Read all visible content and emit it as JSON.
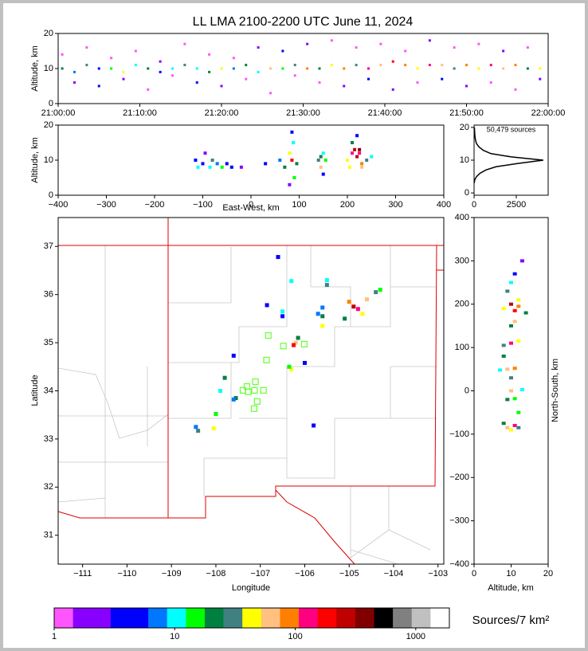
{
  "chart_data": [
    {
      "type": "scatter",
      "title": "LL LMA 2100-2200 UTC June 11, 2024",
      "ylabel": "Altitude, km",
      "xlim": [
        0,
        60
      ],
      "ylim": [
        0,
        20
      ],
      "xticks": [
        {
          "value": 0,
          "label": "21:00:00"
        },
        {
          "value": 10,
          "label": "21:10:00"
        },
        {
          "value": 20,
          "label": "21:20:00"
        },
        {
          "value": 30,
          "label": "21:30:00"
        },
        {
          "value": 40,
          "label": "21:40:00"
        },
        {
          "value": 50,
          "label": "21:50:00"
        },
        {
          "value": 60,
          "label": "22:00:00"
        }
      ],
      "yticks": [
        0,
        10,
        20
      ],
      "x": [
        0.5,
        2,
        3.5,
        5,
        6.5,
        8,
        9.5,
        11,
        12.5,
        14,
        15.5,
        17,
        18.5,
        20,
        21.5,
        23,
        24.5,
        26,
        27.5,
        29,
        30.5,
        32,
        33.5,
        35,
        36.5,
        38,
        39.5,
        41,
        42.5,
        44,
        45.5,
        47,
        48.5,
        50,
        51.5,
        53,
        54.5,
        56,
        57.5,
        59,
        0.5,
        2,
        3.5,
        5,
        6.5,
        8,
        9.5,
        11,
        12.5,
        14,
        15.5,
        17,
        18.5,
        20,
        21.5,
        23,
        24.5,
        26,
        27.5,
        29,
        30.5,
        32,
        33.5,
        35,
        36.5,
        38,
        39.5,
        41,
        42.5,
        44,
        45.5,
        47,
        48.5,
        50,
        51.5,
        53,
        54.5,
        56,
        57.5,
        59
      ],
      "y": [
        10,
        9,
        11,
        10,
        10,
        9,
        11,
        10,
        9,
        10,
        11,
        10,
        9,
        10,
        10,
        11,
        9,
        10,
        10,
        11,
        10,
        10,
        11,
        10,
        11,
        10,
        11,
        12,
        11,
        10,
        11,
        11,
        10,
        11,
        10,
        11,
        10,
        11,
        10,
        10,
        14,
        6,
        16,
        5,
        13,
        7,
        15,
        4,
        12,
        8,
        17,
        6,
        14,
        5,
        13,
        7,
        16,
        3,
        15,
        8,
        17,
        6,
        18,
        5,
        16,
        7,
        17,
        4,
        15,
        6,
        18,
        7,
        16,
        5,
        17,
        6,
        15,
        4,
        16,
        7
      ],
      "density": [
        20,
        8,
        30,
        5,
        15,
        40,
        10,
        25,
        6,
        12,
        35,
        9,
        18,
        50,
        7,
        22,
        11,
        60,
        14,
        30,
        80,
        20,
        45,
        100,
        30,
        150,
        60,
        200,
        90,
        40,
        120,
        70,
        30,
        100,
        50,
        150,
        60,
        80,
        25,
        40,
        1,
        2,
        1,
        3,
        1,
        2,
        1,
        1,
        2,
        1,
        1,
        3,
        1,
        2,
        1,
        1,
        2,
        1,
        3,
        1,
        2,
        1,
        1,
        2,
        1,
        3,
        1,
        2,
        1,
        1,
        2,
        3,
        1,
        2,
        1,
        1,
        2,
        1,
        1,
        2
      ]
    },
    {
      "type": "scatter",
      "xlabel": "East-West, km",
      "ylabel": "Altitude, km",
      "xlim": [
        -400,
        400
      ],
      "ylim": [
        0,
        20
      ],
      "xticks": [
        {
          "value": -400,
          "label": "−400"
        },
        {
          "value": -300,
          "label": "−300"
        },
        {
          "value": -200,
          "label": "−200"
        },
        {
          "value": -100,
          "label": "−100"
        },
        0,
        100,
        200,
        300,
        400
      ],
      "yticks": [
        0,
        10,
        20
      ],
      "x": [
        -115,
        -110,
        -100,
        -95,
        -85,
        -80,
        -70,
        -60,
        -50,
        -40,
        -20,
        30,
        60,
        70,
        80,
        85,
        88,
        90,
        85,
        80,
        95,
        140,
        145,
        150,
        155,
        150,
        145,
        200,
        210,
        215,
        220,
        225,
        230,
        240,
        250,
        210,
        220,
        230,
        205,
        225
      ],
      "y": [
        10,
        8,
        9,
        12,
        8,
        10,
        9,
        8,
        9,
        8,
        8,
        9,
        10,
        8,
        12,
        10,
        15,
        5,
        18,
        3,
        9,
        10,
        8,
        12,
        10,
        6,
        11,
        10,
        12,
        13,
        11,
        12,
        9,
        10,
        11,
        15,
        17,
        8,
        8,
        13
      ],
      "density": [
        3,
        10,
        5,
        2,
        12,
        30,
        8,
        15,
        6,
        4,
        2,
        3,
        8,
        25,
        40,
        200,
        10,
        15,
        3,
        2,
        20,
        30,
        60,
        10,
        15,
        3,
        20,
        50,
        150,
        250,
        300,
        120,
        90,
        30,
        10,
        20,
        5,
        60,
        40,
        400
      ]
    },
    {
      "type": "line",
      "annotation": "50,479 sources",
      "color": "#000000",
      "xlim": [
        0,
        4390
      ],
      "ylim": [
        -0.7,
        20.7
      ],
      "xticks": [
        0,
        2500
      ],
      "yticks": [
        0,
        10,
        20
      ],
      "altitude": [
        3,
        4,
        5,
        6,
        7,
        8,
        9,
        10,
        11,
        12,
        13,
        14,
        15,
        16,
        17,
        18,
        19,
        20
      ],
      "sources": [
        10,
        40,
        150,
        350,
        700,
        1300,
        2600,
        4100,
        2200,
        1000,
        550,
        300,
        150,
        90,
        60,
        40,
        30,
        20
      ]
    },
    {
      "type": "scatter",
      "xlabel": "Longitude",
      "ylabel": "Latitude",
      "xlim": [
        -111.55,
        -102.87
      ],
      "ylim": [
        30.4,
        37.6
      ],
      "xticks": [
        {
          "value": -111,
          "label": "−111"
        },
        {
          "value": -110,
          "label": "−110"
        },
        {
          "value": -109,
          "label": "−109"
        },
        {
          "value": -108,
          "label": "−108"
        },
        {
          "value": -107,
          "label": "−107"
        },
        {
          "value": -106,
          "label": "−106"
        },
        {
          "value": -105,
          "label": "−105"
        },
        {
          "value": -104,
          "label": "−104"
        },
        {
          "value": -103,
          "label": "−103"
        }
      ],
      "yticks": [
        31,
        32,
        33,
        34,
        35,
        36,
        37
      ],
      "x": [
        -104.9,
        -104.8,
        -104.6,
        -104.4,
        -104.3,
        -105.1,
        -105.0,
        -104.7,
        -105.5,
        -105.5,
        -105.6,
        -105.6,
        -105.7,
        -106.2,
        -106.25,
        -106.15,
        -106.3,
        -106.35,
        -106.5,
        -106.5,
        -107.8,
        -107.9,
        -108.0,
        -108.45,
        -108.4,
        -108.05,
        -107.55,
        -107.6,
        -106.6,
        -106.0,
        -105.8,
        -106.85,
        -107.6,
        -106.3,
        -105.6
      ],
      "y": [
        35.75,
        35.7,
        35.9,
        36.05,
        36.1,
        35.5,
        35.85,
        35.6,
        36.3,
        36.2,
        35.55,
        35.35,
        35.6,
        35.0,
        34.95,
        35.1,
        34.45,
        34.5,
        35.65,
        35.55,
        34.27,
        34.0,
        33.52,
        33.25,
        33.17,
        33.22,
        33.85,
        33.82,
        36.78,
        34.58,
        33.28,
        35.78,
        34.73,
        36.28,
        35.73
      ],
      "density": [
        300,
        150,
        60,
        30,
        15,
        20,
        100,
        40,
        10,
        30,
        20,
        40,
        8,
        60,
        200,
        20,
        40,
        15,
        10,
        5,
        20,
        10,
        15,
        8,
        30,
        40,
        20,
        8,
        5,
        3,
        6,
        3,
        4,
        10,
        8
      ],
      "stations": {
        "color": "#66ff33",
        "lon": [
          -106.82,
          -106.48,
          -106.01,
          -106.86,
          -107.39,
          -107.3,
          -107.11,
          -107.13,
          -106.93,
          -107.07,
          -107.14,
          -107.27
        ],
        "lat": [
          35.15,
          34.93,
          34.97,
          34.64,
          34.01,
          34.09,
          34.19,
          34.01,
          34.01,
          33.78,
          33.63,
          33.98
        ]
      }
    },
    {
      "type": "scatter",
      "xlabel": "Altitude, km",
      "ylabel": "North-South, km",
      "xlim": [
        0,
        20
      ],
      "ylim": [
        -400,
        400
      ],
      "xticks": [
        0,
        10,
        20
      ],
      "yticks": [
        {
          "value": -400,
          "label": "−400"
        },
        {
          "value": -300,
          "label": "−300"
        },
        {
          "value": -200,
          "label": "−200"
        },
        {
          "value": -100,
          "label": "−100"
        },
        0,
        100,
        200,
        300,
        400
      ],
      "x": [
        8,
        10,
        11,
        12,
        14,
        9,
        11,
        10,
        12,
        13,
        8,
        10,
        12,
        9,
        11,
        7,
        10,
        13,
        9,
        11,
        10,
        8,
        12,
        9,
        11,
        10,
        8,
        12,
        10,
        11
      ],
      "y": [
        190,
        200,
        185,
        195,
        180,
        230,
        160,
        250,
        210,
        300,
        105,
        110,
        115,
        50,
        52,
        48,
        0,
        3,
        -20,
        -18,
        30,
        80,
        -50,
        -85,
        -80,
        -90,
        -75,
        -85,
        150,
        270
      ],
      "density": [
        40,
        300,
        200,
        100,
        20,
        30,
        60,
        10,
        40,
        2,
        30,
        150,
        40,
        60,
        100,
        10,
        60,
        10,
        20,
        15,
        30,
        20,
        15,
        60,
        150,
        40,
        20,
        30,
        20,
        5
      ]
    },
    {
      "type": "colorbar",
      "label": "Sources/7 km²",
      "log": true,
      "xlim": [
        1,
        1900
      ],
      "xticks": [
        1,
        10,
        100,
        1000
      ],
      "colors": [
        "#ff55ff",
        "#8800ff",
        "#8800ff",
        "#0000ff",
        "#0000ff",
        "#0077ff",
        "#00ffff",
        "#00ff00",
        "#008040",
        "#408080",
        "#ffff00",
        "#ffc080",
        "#ff8000",
        "#ff0080",
        "#ff0000",
        "#c00000",
        "#800000",
        "#000000",
        "#808080",
        "#c0c0c0",
        "#ffffff"
      ]
    }
  ]
}
